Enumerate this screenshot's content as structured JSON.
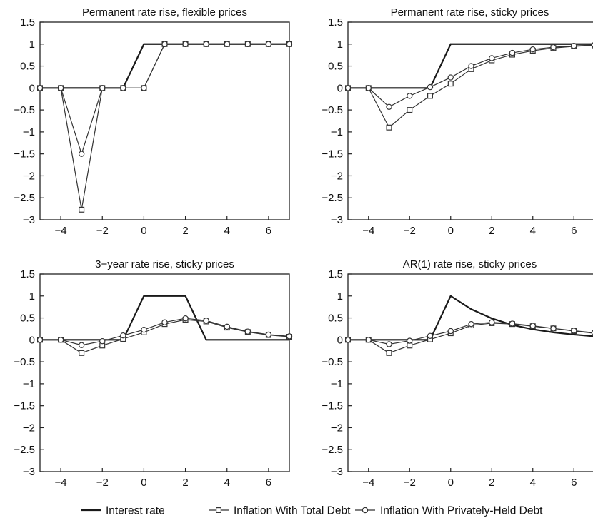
{
  "legend": {
    "items": [
      {
        "label": "Interest rate",
        "key": "rate",
        "marker": "none"
      },
      {
        "label": "Inflation With Total Debt",
        "key": "total",
        "marker": "square"
      },
      {
        "label": "Inflation With Privately-Held Debt",
        "key": "priv",
        "marker": "circle"
      }
    ],
    "placement": "bottom-center"
  },
  "chart_data": [
    {
      "type": "line",
      "title": "Permanent rate rise, flexible prices",
      "xlim": [
        -5,
        7
      ],
      "ylim": [
        -3,
        1.5
      ],
      "xticks": [
        -4,
        -2,
        0,
        2,
        4,
        6
      ],
      "xticklabels": [
        "−4",
        "−2",
        "0",
        "2",
        "4",
        "6"
      ],
      "yticks": [
        1.5,
        1,
        0.5,
        0,
        -0.5,
        -1,
        -1.5,
        -2,
        -2.5,
        -3
      ],
      "yticklabels": [
        "1.5",
        "1",
        "0.5",
        "0",
        "−0.5",
        "−1",
        "−1.5",
        "−2",
        "−2.5",
        "−3"
      ],
      "grid": false,
      "x": [
        -5,
        -4,
        -3,
        -2,
        -1,
        0,
        1,
        2,
        3,
        4,
        5,
        6,
        7
      ],
      "series": [
        {
          "key": "rate",
          "values": [
            0,
            0,
            0,
            0,
            0,
            1,
            1,
            1,
            1,
            1,
            1,
            1,
            1
          ]
        },
        {
          "key": "total",
          "values": [
            0,
            0,
            -2.77,
            0,
            0,
            0,
            1,
            1,
            1,
            1,
            1,
            1,
            1
          ]
        },
        {
          "key": "priv",
          "values": [
            0,
            0,
            -1.5,
            0,
            0,
            0,
            1,
            1,
            1,
            1,
            1,
            1,
            1
          ]
        }
      ]
    },
    {
      "type": "line",
      "title": "Permanent rate rise, sticky prices",
      "xlim": [
        -5,
        7
      ],
      "ylim": [
        -3,
        1.5
      ],
      "xticks": [
        -4,
        -2,
        0,
        2,
        4,
        6
      ],
      "xticklabels": [
        "−4",
        "−2",
        "0",
        "2",
        "4",
        "6"
      ],
      "yticks": [
        1.5,
        1,
        0.5,
        0,
        -0.5,
        -1,
        -1.5,
        -2,
        -2.5,
        -3
      ],
      "yticklabels": [
        "1.5",
        "1",
        "0.5",
        "0",
        "−0.5",
        "−1",
        "−1.5",
        "−2",
        "−2.5",
        "−3"
      ],
      "grid": false,
      "x": [
        -5,
        -4,
        -3,
        -2,
        -1,
        0,
        1,
        2,
        3,
        4,
        5,
        6,
        7
      ],
      "series": [
        {
          "key": "rate",
          "values": [
            0,
            0,
            0,
            0,
            0,
            1,
            1,
            1,
            1,
            1,
            1,
            1,
            1
          ]
        },
        {
          "key": "total",
          "values": [
            0,
            0,
            -0.9,
            -0.5,
            -0.18,
            0.1,
            0.43,
            0.63,
            0.76,
            0.85,
            0.91,
            0.95,
            0.97
          ]
        },
        {
          "key": "priv",
          "values": [
            0,
            0,
            -0.43,
            -0.18,
            0.02,
            0.24,
            0.5,
            0.68,
            0.8,
            0.88,
            0.93,
            0.96,
            0.98
          ]
        }
      ]
    },
    {
      "type": "line",
      "title": "3−year rate rise, sticky prices",
      "xlim": [
        -5,
        7
      ],
      "ylim": [
        -3,
        1.5
      ],
      "xticks": [
        -4,
        -2,
        0,
        2,
        4,
        6
      ],
      "xticklabels": [
        "−4",
        "−2",
        "0",
        "2",
        "4",
        "6"
      ],
      "yticks": [
        1.5,
        1,
        0.5,
        0,
        -0.5,
        -1,
        -1.5,
        -2,
        -2.5,
        -3
      ],
      "yticklabels": [
        "1.5",
        "1",
        "0.5",
        "0",
        "−0.5",
        "−1",
        "−1.5",
        "−2",
        "−2.5",
        "−3"
      ],
      "grid": false,
      "x": [
        -5,
        -4,
        -3,
        -2,
        -1,
        0,
        1,
        2,
        3,
        4,
        5,
        6,
        7
      ],
      "series": [
        {
          "key": "rate",
          "values": [
            0,
            0,
            0,
            0,
            0,
            1,
            1,
            1,
            0,
            0,
            0,
            0,
            0
          ]
        },
        {
          "key": "total",
          "values": [
            0,
            0,
            -0.3,
            -0.13,
            0.02,
            0.17,
            0.36,
            0.46,
            0.42,
            0.28,
            0.18,
            0.11,
            0.07
          ]
        },
        {
          "key": "priv",
          "values": [
            0,
            0,
            -0.12,
            -0.03,
            0.1,
            0.23,
            0.4,
            0.49,
            0.44,
            0.3,
            0.19,
            0.12,
            0.08
          ]
        }
      ]
    },
    {
      "type": "line",
      "title": "AR(1) rate rise, sticky prices",
      "xlim": [
        -5,
        7
      ],
      "ylim": [
        -3,
        1.5
      ],
      "xticks": [
        -4,
        -2,
        0,
        2,
        4,
        6
      ],
      "xticklabels": [
        "−4",
        "−2",
        "0",
        "2",
        "4",
        "6"
      ],
      "yticks": [
        1.5,
        1,
        0.5,
        0,
        -0.5,
        -1,
        -1.5,
        -2,
        -2.5,
        -3
      ],
      "yticklabels": [
        "1.5",
        "1",
        "0.5",
        "0",
        "−0.5",
        "−1",
        "−1.5",
        "−2",
        "−2.5",
        "−3"
      ],
      "grid": false,
      "x": [
        -5,
        -4,
        -3,
        -2,
        -1,
        0,
        1,
        2,
        3,
        4,
        5,
        6,
        7
      ],
      "series": [
        {
          "key": "rate",
          "values": [
            0,
            0,
            0,
            0,
            0,
            1,
            0.7,
            0.49,
            0.34,
            0.24,
            0.17,
            0.12,
            0.08
          ]
        },
        {
          "key": "total",
          "values": [
            0,
            0,
            -0.3,
            -0.13,
            0.01,
            0.15,
            0.33,
            0.38,
            0.36,
            0.31,
            0.26,
            0.2,
            0.15
          ]
        },
        {
          "key": "priv",
          "values": [
            0,
            0,
            -0.1,
            -0.02,
            0.09,
            0.2,
            0.36,
            0.4,
            0.37,
            0.32,
            0.26,
            0.21,
            0.16
          ]
        }
      ]
    }
  ]
}
